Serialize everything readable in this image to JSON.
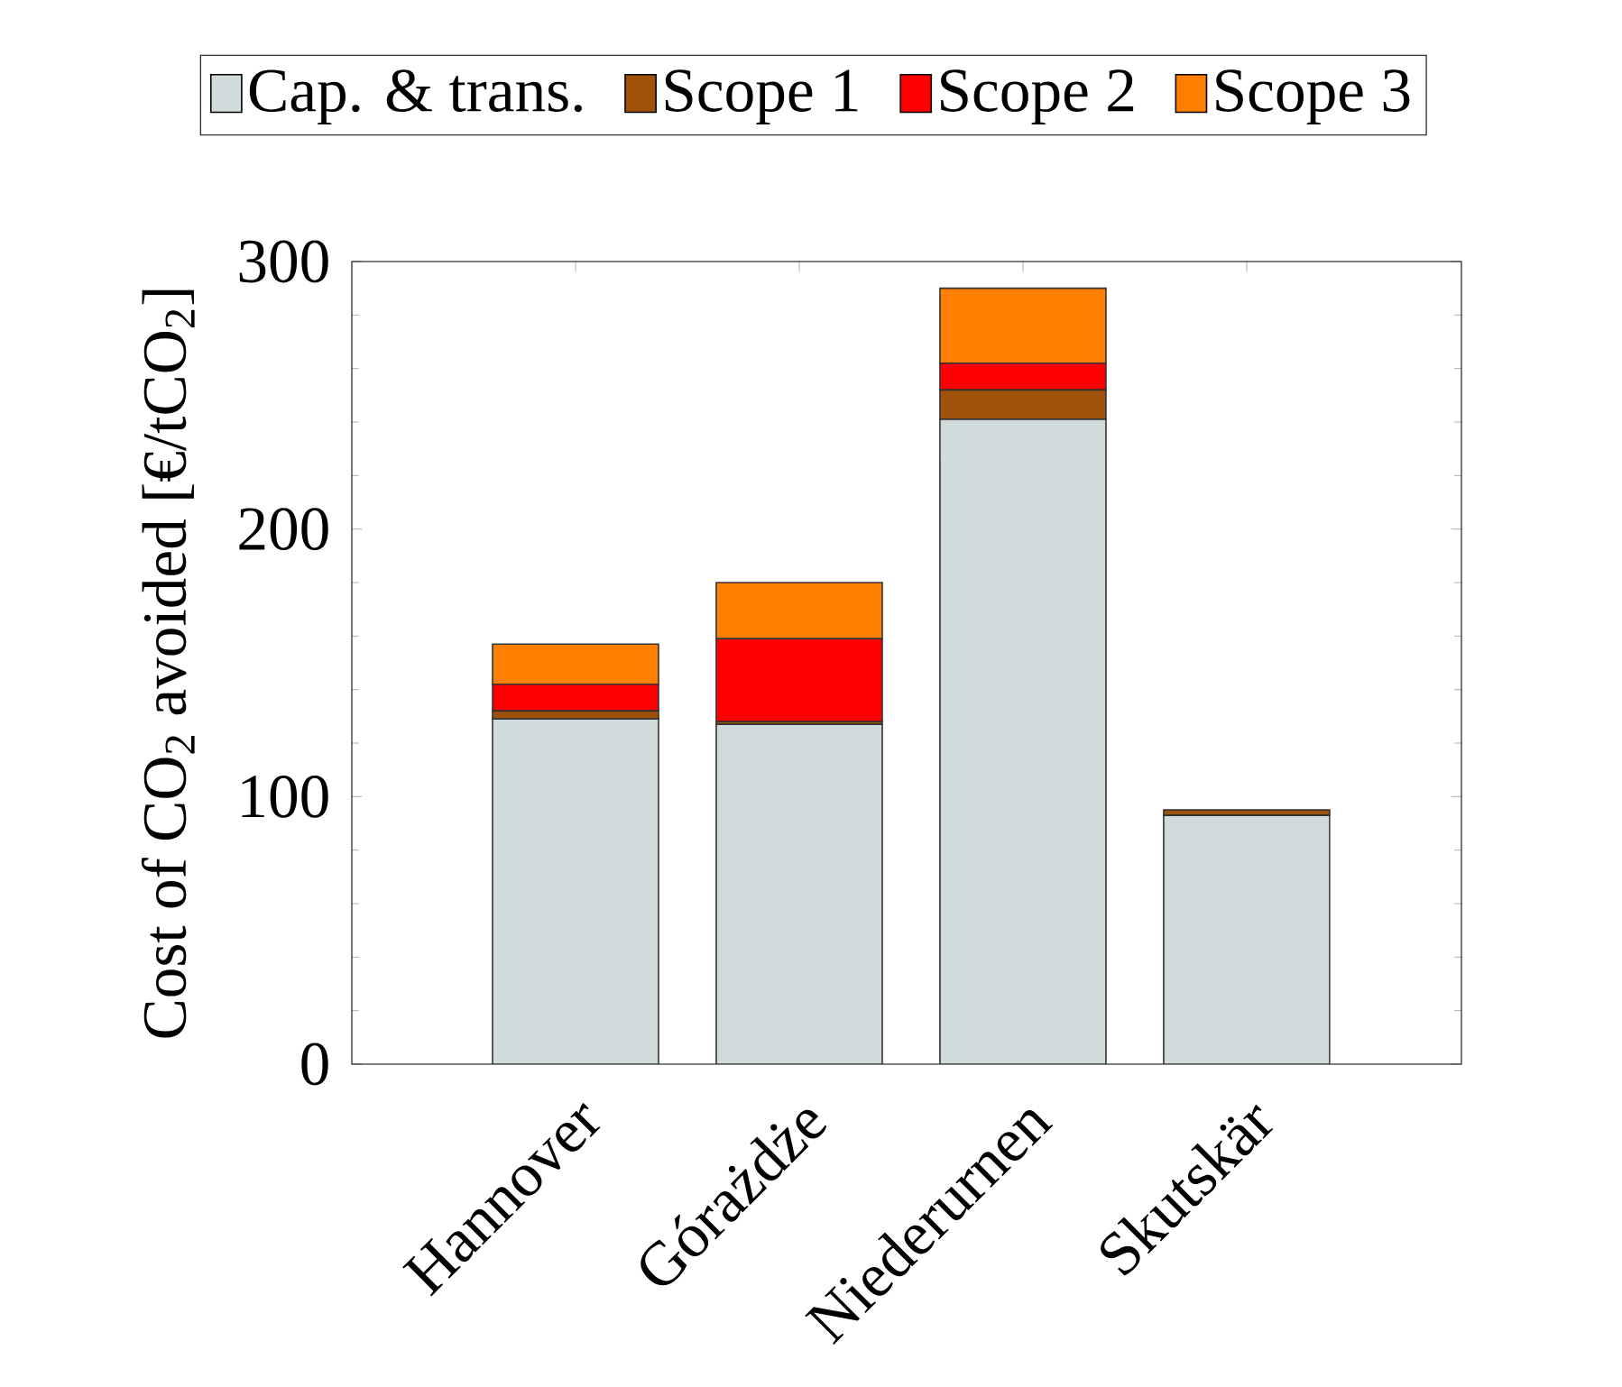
{
  "chart_data": {
    "type": "bar",
    "stacked": true,
    "ylabel": "Cost of CO$_{2}$ avoided [€/tCO$_{2}$]",
    "categories": [
      "Hannover",
      "Górażdże",
      "Niederurnen",
      "Skutskär"
    ],
    "series": [
      {
        "name": "Cap. & trans.",
        "color": "#d0dcdc",
        "values": [
          129,
          127,
          241,
          93
        ]
      },
      {
        "name": "Scope 1",
        "color": "#a0520a",
        "values": [
          3,
          1,
          11,
          2
        ]
      },
      {
        "name": "Scope 2",
        "color": "#ff0000",
        "values": [
          10,
          31,
          10,
          0
        ]
      },
      {
        "name": "Scope 3",
        "color": "#ff8000",
        "values": [
          15,
          21,
          28,
          0
        ]
      }
    ],
    "ylim": [
      0,
      300
    ],
    "yticks": [
      0,
      100,
      200,
      300
    ],
    "grid": false,
    "legend": "top"
  }
}
